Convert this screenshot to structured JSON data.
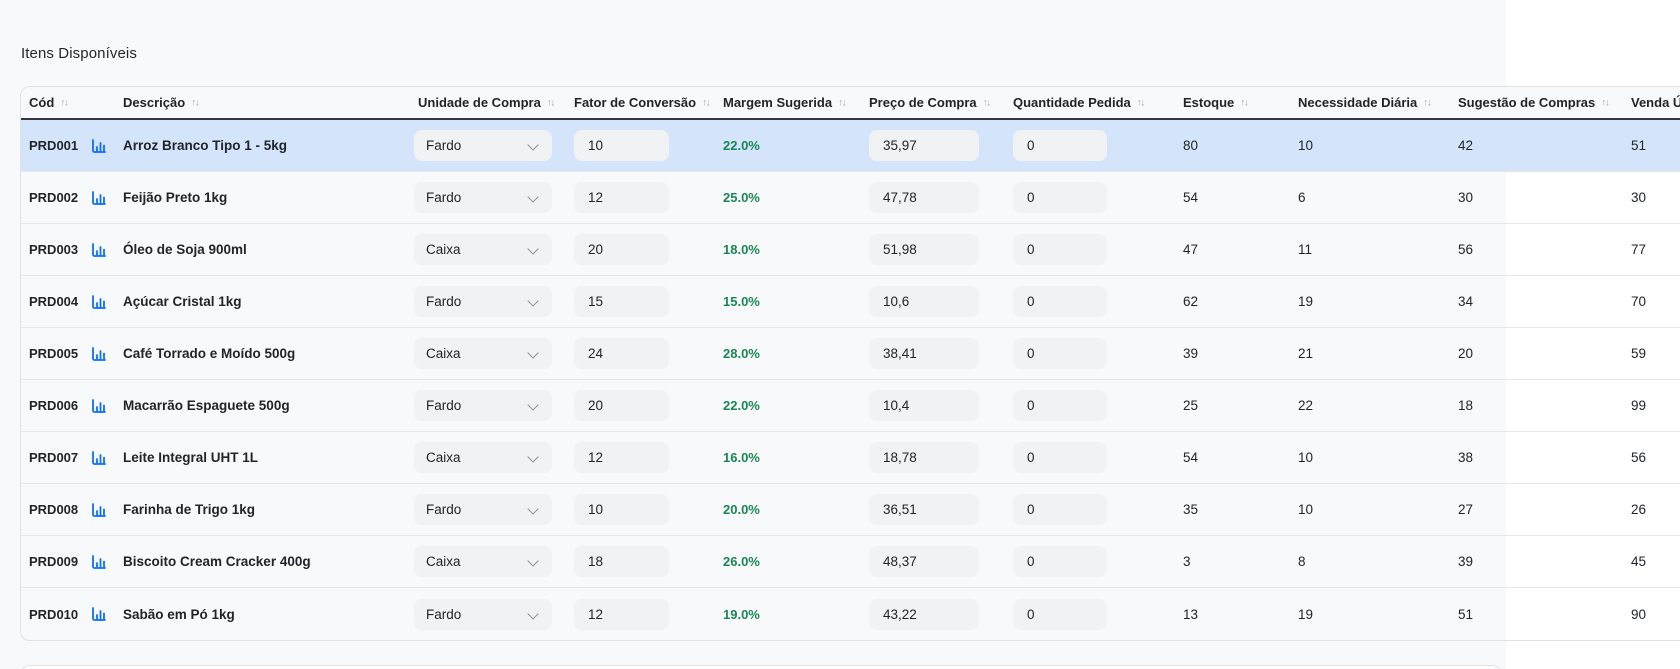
{
  "section": {
    "title": "Itens Disponíveis"
  },
  "colors": {
    "accent": "#0d6efd",
    "success": "#198754",
    "selected_row": "#d4e4fb",
    "page_background": "#f8f9fa",
    "card_border": "#dee2e6"
  },
  "icons": {
    "sort_glyph": "↑↓",
    "row_action_icon": "bar-chart-icon",
    "select_indicator": "chevron-down-icon"
  },
  "table": {
    "columns": [
      {
        "key": "cod",
        "label": "Cód"
      },
      {
        "key": "descricao",
        "label": "Descrição"
      },
      {
        "key": "unidade",
        "label": "Unidade de Compra"
      },
      {
        "key": "fator",
        "label": "Fator de Conversão"
      },
      {
        "key": "margem",
        "label": "Margem Sugerida"
      },
      {
        "key": "preco",
        "label": "Preço de Compra"
      },
      {
        "key": "quantidade",
        "label": "Quantidade Pedida"
      },
      {
        "key": "estoque",
        "label": "Estoque"
      },
      {
        "key": "necessidade",
        "label": "Necessidade Diária"
      },
      {
        "key": "sugestao",
        "label": "Sugestão de Compras"
      },
      {
        "key": "venda",
        "label": "Venda Ú"
      }
    ],
    "rows": [
      {
        "cod": "PRD001",
        "descricao": "Arroz Branco Tipo 1 - 5kg",
        "unidade": "Fardo",
        "fator": "10",
        "margem": "22.0%",
        "preco": "35,97",
        "quantidade": "0",
        "estoque": "80",
        "necessidade": "10",
        "sugestao": "42",
        "venda": "51",
        "selected": true
      },
      {
        "cod": "PRD002",
        "descricao": "Feijão Preto 1kg",
        "unidade": "Fardo",
        "fator": "12",
        "margem": "25.0%",
        "preco": "47,78",
        "quantidade": "0",
        "estoque": "54",
        "necessidade": "6",
        "sugestao": "30",
        "venda": "30",
        "selected": false
      },
      {
        "cod": "PRD003",
        "descricao": "Óleo de Soja 900ml",
        "unidade": "Caixa",
        "fator": "20",
        "margem": "18.0%",
        "preco": "51,98",
        "quantidade": "0",
        "estoque": "47",
        "necessidade": "11",
        "sugestao": "56",
        "venda": "77",
        "selected": false
      },
      {
        "cod": "PRD004",
        "descricao": "Açúcar Cristal 1kg",
        "unidade": "Fardo",
        "fator": "15",
        "margem": "15.0%",
        "preco": "10,6",
        "quantidade": "0",
        "estoque": "62",
        "necessidade": "19",
        "sugestao": "34",
        "venda": "70",
        "selected": false
      },
      {
        "cod": "PRD005",
        "descricao": "Café Torrado e Moído 500g",
        "unidade": "Caixa",
        "fator": "24",
        "margem": "28.0%",
        "preco": "38,41",
        "quantidade": "0",
        "estoque": "39",
        "necessidade": "21",
        "sugestao": "20",
        "venda": "59",
        "selected": false
      },
      {
        "cod": "PRD006",
        "descricao": "Macarrão Espaguete 500g",
        "unidade": "Fardo",
        "fator": "20",
        "margem": "22.0%",
        "preco": "10,4",
        "quantidade": "0",
        "estoque": "25",
        "necessidade": "22",
        "sugestao": "18",
        "venda": "99",
        "selected": false
      },
      {
        "cod": "PRD007",
        "descricao": "Leite Integral UHT 1L",
        "unidade": "Caixa",
        "fator": "12",
        "margem": "16.0%",
        "preco": "18,78",
        "quantidade": "0",
        "estoque": "54",
        "necessidade": "10",
        "sugestao": "38",
        "venda": "56",
        "selected": false
      },
      {
        "cod": "PRD008",
        "descricao": "Farinha de Trigo 1kg",
        "unidade": "Fardo",
        "fator": "10",
        "margem": "20.0%",
        "preco": "36,51",
        "quantidade": "0",
        "estoque": "35",
        "necessidade": "10",
        "sugestao": "27",
        "venda": "26",
        "selected": false
      },
      {
        "cod": "PRD009",
        "descricao": "Biscoito Cream Cracker 400g",
        "unidade": "Caixa",
        "fator": "18",
        "margem": "26.0%",
        "preco": "48,37",
        "quantidade": "0",
        "estoque": "3",
        "necessidade": "8",
        "sugestao": "39",
        "venda": "45",
        "selected": false
      },
      {
        "cod": "PRD010",
        "descricao": "Sabão em Pó 1kg",
        "unidade": "Fardo",
        "fator": "12",
        "margem": "19.0%",
        "preco": "43,22",
        "quantidade": "0",
        "estoque": "13",
        "necessidade": "19",
        "sugestao": "51",
        "venda": "90",
        "selected": false
      }
    ]
  }
}
